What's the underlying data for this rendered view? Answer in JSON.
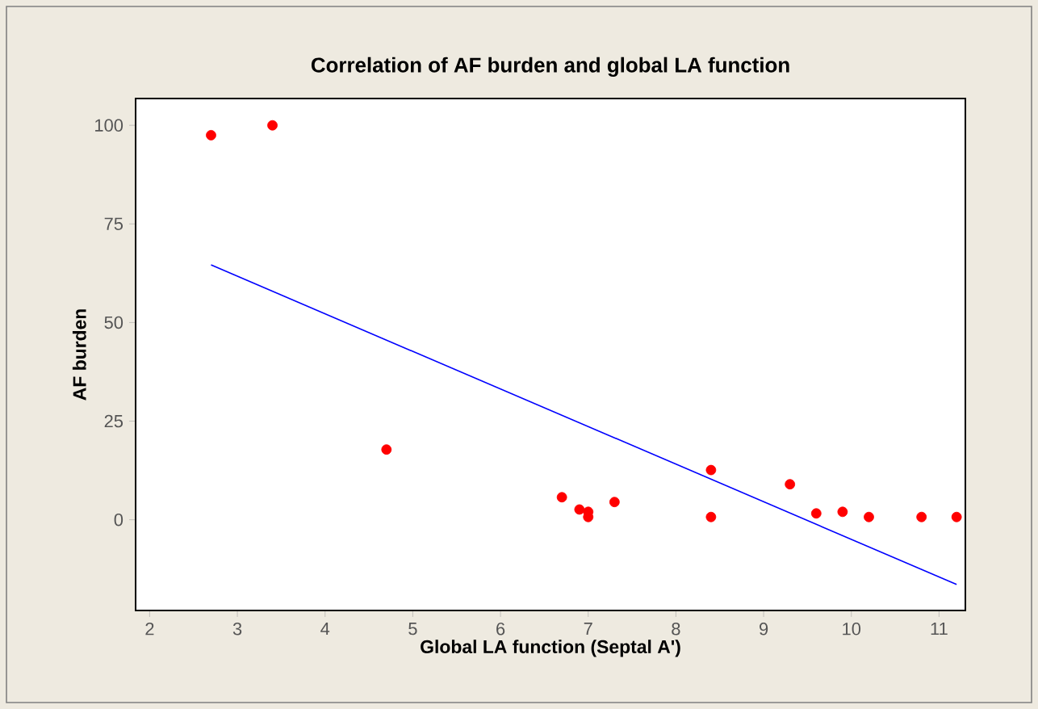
{
  "chart_data": {
    "type": "scatter",
    "title": "Correlation of AF burden and global LA function",
    "xlabel": "Global LA function (Septal A')",
    "ylabel": "AF burden",
    "xlim": [
      1.84,
      11.3
    ],
    "ylim": [
      -23,
      106.8
    ],
    "xticks": [
      2,
      3,
      4,
      5,
      6,
      7,
      8,
      9,
      10,
      11
    ],
    "yticks": [
      0,
      25,
      50,
      75,
      100
    ],
    "grid": false,
    "series": [
      {
        "marker": "circle",
        "color": "#ff0000",
        "x": [
          2.7,
          3.4,
          4.7,
          6.7,
          6.9,
          7.0,
          7.0,
          7.3,
          8.4,
          8.4,
          9.3,
          9.6,
          9.9,
          10.2,
          10.8,
          11.2
        ],
        "values": [
          97.5,
          100,
          17.8,
          5.7,
          2.6,
          2.0,
          0.7,
          4.5,
          12.6,
          0.7,
          9.0,
          1.6,
          2.0,
          0.7,
          0.7,
          0.7
        ]
      },
      {
        "type": "line",
        "color": "#0000ff",
        "line_style": "solid",
        "x": [
          2.7,
          11.2
        ],
        "values": [
          64.6,
          -16.4
        ]
      }
    ]
  }
}
